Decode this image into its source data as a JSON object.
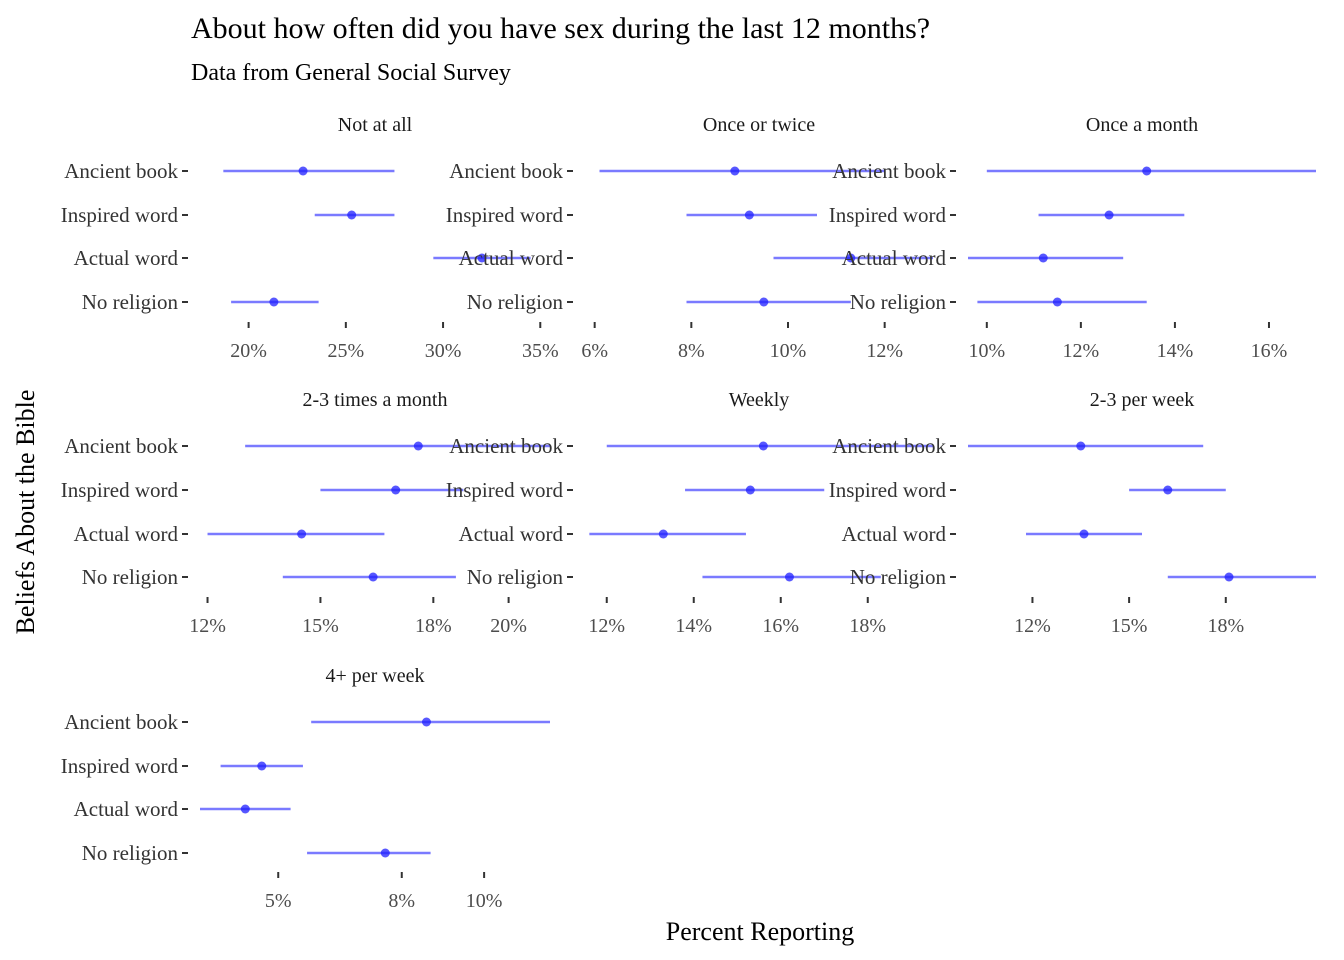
{
  "title": "About how often did you have sex during the last 12 months?",
  "subtitle": "Data from General Social Survey",
  "xlabel": "Percent Reporting",
  "ylabel": "Beliefs About the Bible",
  "colors": {
    "point": "#1f1fff",
    "interval": "#7a7aff",
    "tick": "#333333"
  },
  "chart_data": [
    {
      "type": "pointrange",
      "panel": "Not at all",
      "categories": [
        "Ancient book",
        "Inspired word",
        "Actual word",
        "No religion"
      ],
      "xlim": [
        17.5,
        35.5
      ],
      "xticks": [
        20,
        25,
        30,
        35
      ],
      "tick_labels": [
        "20%",
        "25%",
        "30%",
        "35%"
      ],
      "estimate": [
        22.8,
        25.3,
        32.0,
        21.3
      ],
      "lower": [
        18.7,
        23.4,
        29.5,
        19.1
      ],
      "upper": [
        27.5,
        27.5,
        34.5,
        23.6
      ]
    },
    {
      "type": "pointrange",
      "panel": "Once or twice",
      "categories": [
        "Ancient book",
        "Inspired word",
        "Actual word",
        "No religion"
      ],
      "xlim": [
        5.8,
        13.0
      ],
      "xticks": [
        6,
        8,
        10,
        12
      ],
      "tick_labels": [
        "6%",
        "8%",
        "10%",
        "12%"
      ],
      "estimate": [
        8.9,
        9.2,
        11.3,
        9.5
      ],
      "lower": [
        6.1,
        7.9,
        9.7,
        7.9
      ],
      "upper": [
        12.0,
        10.6,
        13.0,
        11.3
      ]
    },
    {
      "type": "pointrange",
      "panel": "Once a month",
      "categories": [
        "Ancient book",
        "Inspired word",
        "Actual word",
        "No religion"
      ],
      "xlim": [
        9.6,
        17.0
      ],
      "xticks": [
        10,
        12,
        14,
        16
      ],
      "tick_labels": [
        "10%",
        "12%",
        "14%",
        "16%"
      ],
      "estimate": [
        13.4,
        12.6,
        11.2,
        11.5
      ],
      "lower": [
        10.0,
        11.1,
        9.6,
        9.8
      ],
      "upper": [
        17.0,
        14.2,
        12.9,
        13.4
      ]
    },
    {
      "type": "pointrange",
      "panel": "2-3 times a month",
      "categories": [
        "Ancient book",
        "Inspired word",
        "Actual word",
        "No religion"
      ],
      "xlim": [
        11.8,
        21.1
      ],
      "xticks": [
        12,
        15,
        18,
        20
      ],
      "tick_labels": [
        "12%",
        "15%",
        "18%",
        "20%"
      ],
      "estimate": [
        17.6,
        17.0,
        14.5,
        16.4
      ],
      "lower": [
        13.0,
        15.0,
        12.0,
        14.0
      ],
      "upper": [
        21.1,
        18.8,
        16.7,
        18.6
      ]
    },
    {
      "type": "pointrange",
      "panel": "Weekly",
      "categories": [
        "Ancient book",
        "Inspired word",
        "Actual word",
        "No religion"
      ],
      "xlim": [
        11.5,
        19.5
      ],
      "xticks": [
        12,
        14,
        16,
        18
      ],
      "tick_labels": [
        "12%",
        "14%",
        "16%",
        "18%"
      ],
      "estimate": [
        15.6,
        15.3,
        13.3,
        16.2
      ],
      "lower": [
        12.0,
        13.8,
        11.6,
        14.2
      ],
      "upper": [
        19.5,
        17.0,
        15.2,
        18.3
      ]
    },
    {
      "type": "pointrange",
      "panel": "2-3 per week",
      "categories": [
        "Ancient book",
        "Inspired word",
        "Actual word",
        "No religion"
      ],
      "xlim": [
        10.0,
        20.8
      ],
      "xticks": [
        12,
        15,
        18
      ],
      "tick_labels": [
        "12%",
        "15%",
        "18%"
      ],
      "estimate": [
        13.5,
        16.2,
        13.6,
        18.1
      ],
      "lower": [
        10.0,
        15.0,
        11.8,
        16.2
      ],
      "upper": [
        17.3,
        18.0,
        15.4,
        20.8
      ]
    },
    {
      "type": "pointrange",
      "panel": "4+ per week",
      "categories": [
        "Ancient book",
        "Inspired word",
        "Actual word",
        "No religion"
      ],
      "xlim": [
        3.1,
        11.6
      ],
      "xticks": [
        5,
        8,
        10
      ],
      "tick_labels": [
        "5%",
        "8%",
        "10%"
      ],
      "estimate": [
        8.6,
        4.6,
        4.2,
        7.6
      ],
      "lower": [
        5.8,
        3.6,
        3.1,
        5.7
      ],
      "upper": [
        11.6,
        5.6,
        5.3,
        8.7
      ]
    }
  ]
}
